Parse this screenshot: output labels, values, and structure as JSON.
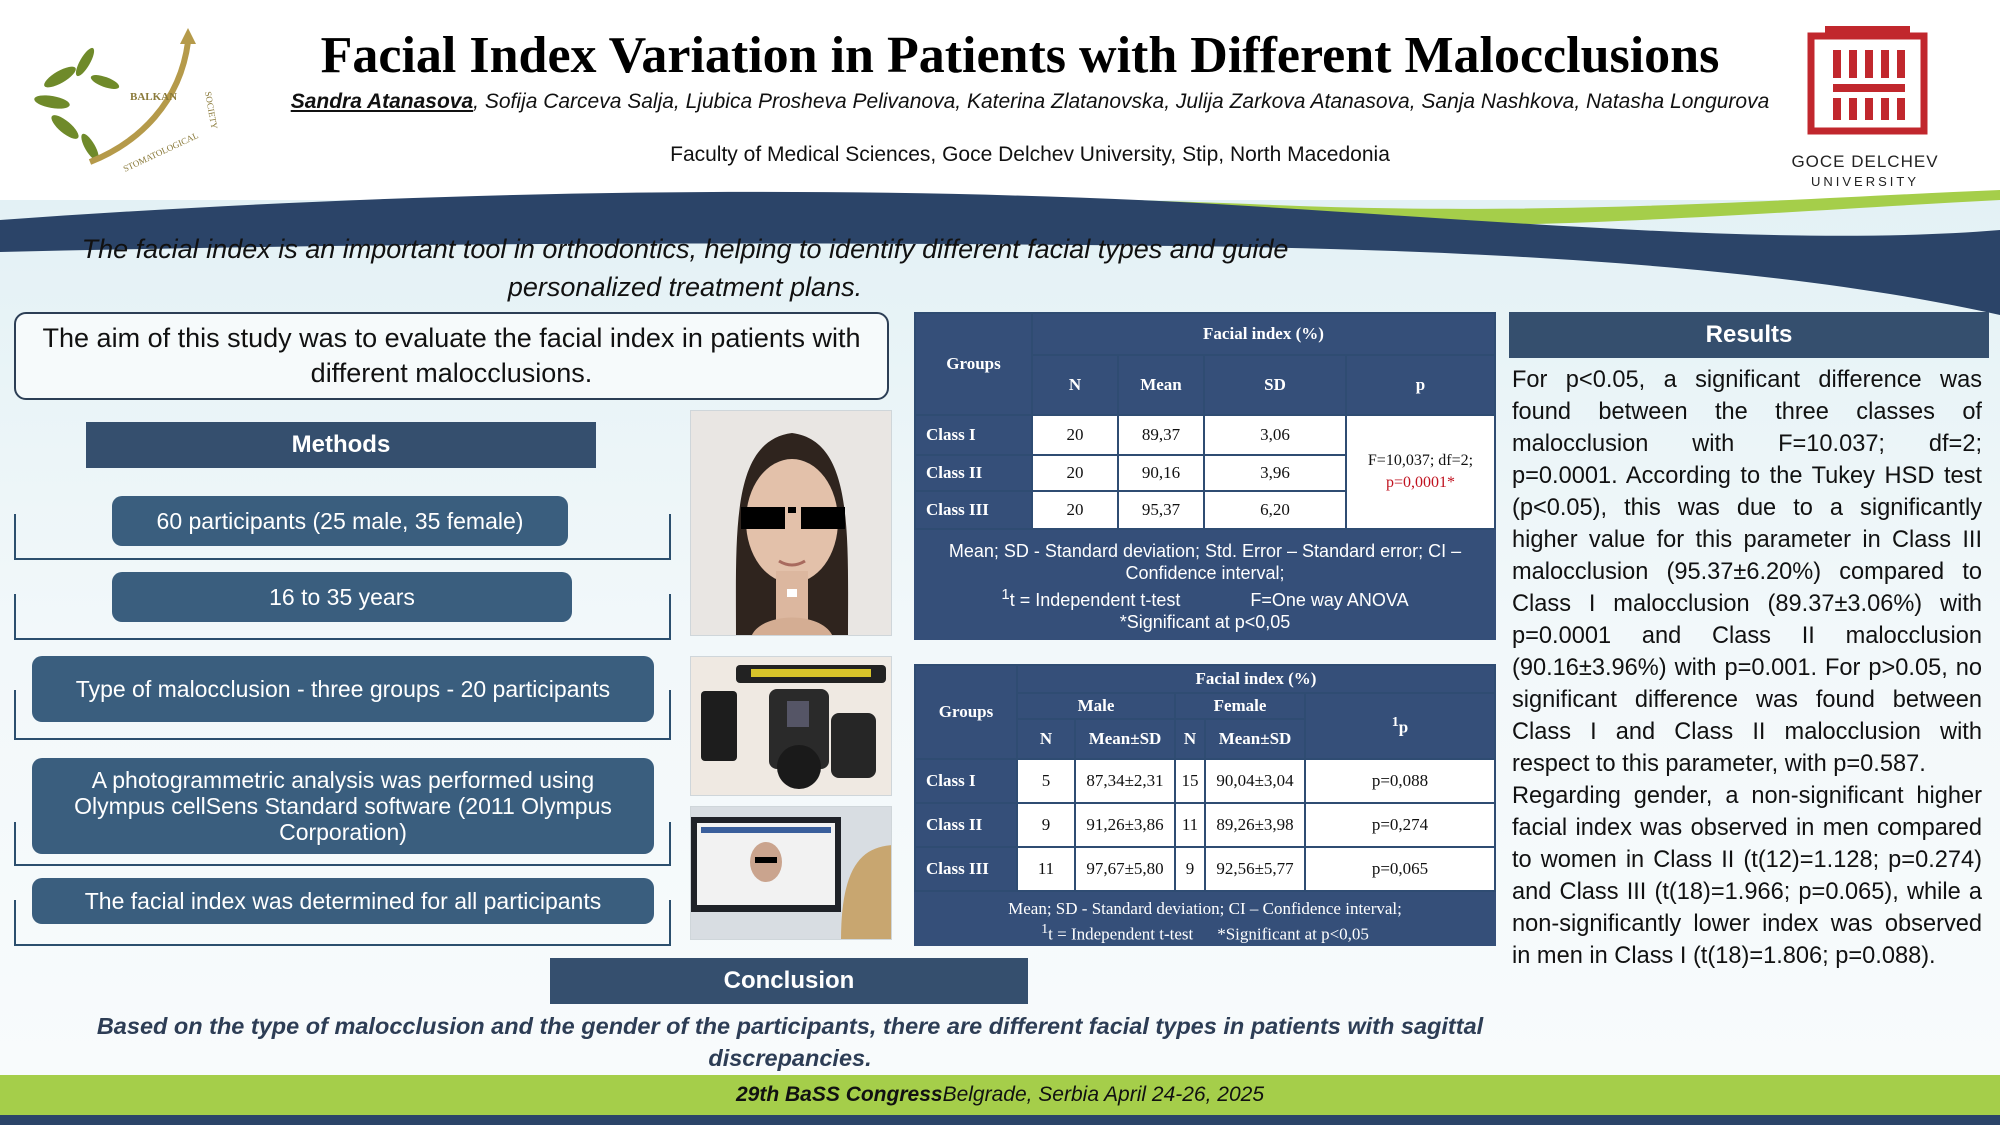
{
  "header": {
    "title": "Facial Index Variation in Patients with Different Malocclusions",
    "first_author": "Sandra Atanasova",
    "other_authors": ", Sofija Carceva Salja, Ljubica Prosheva Pelivanova, Katerina Zlatanovska, Julija Zarkova Atanasova, Sanja Nashkova, Natasha Longurova",
    "affiliation": "Faculty of Medical Sciences, Goce Delchev University, Stip, North Macedonia"
  },
  "logos": {
    "bass_text_1": "BALKAN",
    "bass_text_2": "STOMATOLOGICAL",
    "bass_text_3": "SOCIETY",
    "university_name": "GOCE DELCHEV",
    "university_sub": "UNIVERSITY"
  },
  "intro": "The facial index is an important tool in orthodontics, helping to identify different facial types and guide personalized treatment plans.",
  "aim": "The aim of this study was to evaluate the facial index in patients with different malocclusions.",
  "methods": {
    "title": "Methods",
    "items": [
      "60 participants (25 male, 35 female)",
      "16 to 35 years",
      "Type of malocclusion - three groups - 20 participants",
      "A photogrammetric analysis was performed using Olympus cellSens Standard software (2011 Olympus Corporation)",
      "The facial index was determined for all participants"
    ]
  },
  "table1": {
    "col_groups": "Groups",
    "col_span": "Facial index (%)",
    "col_n": "N",
    "col_mean": "Mean",
    "col_sd": "SD",
    "col_p": "p",
    "rows": [
      {
        "group": "Class I",
        "n": "20",
        "mean": "89,37",
        "sd": "3,06"
      },
      {
        "group": "Class II",
        "n": "20",
        "mean": "90,16",
        "sd": "3,96"
      },
      {
        "group": "Class III",
        "n": "20",
        "mean": "95,37",
        "sd": "6,20"
      }
    ],
    "p_stat": "F=10,037; df=2;",
    "p_value": "p=0,0001*",
    "note_line1": "Mean; SD - Standard deviation; Std. Error – Standard error; CI – Confidence interval;",
    "note_sup": "1",
    "note_line2a": "t = Independent t-test",
    "note_line2b": "F=One way ANOVA",
    "note_line3": "*Significant at p<0,05"
  },
  "table2": {
    "col_groups": "Groups",
    "col_span": "Facial index (%)",
    "col_male": "Male",
    "col_female": "Female",
    "col_n": "N",
    "col_meansd": "Mean±SD",
    "col_p_sup": "1",
    "col_p": "p",
    "rows": [
      {
        "group": "Class I",
        "mn": "5",
        "mmean": "87,34±2,31",
        "fn": "15",
        "fmean": "90,04±3,04",
        "p": "p=0,088"
      },
      {
        "group": "Class II",
        "mn": "9",
        "mmean": "91,26±3,86",
        "fn": "11",
        "fmean": "89,26±3,98",
        "p": "p=0,274"
      },
      {
        "group": "Class III",
        "mn": "11",
        "mmean": "97,67±5,80",
        "fn": "9",
        "fmean": "92,56±5,77",
        "p": "p=0,065"
      }
    ],
    "note_line1": "Mean; SD - Standard deviation; CI – Confidence interval;",
    "note_sup": "1",
    "note_line2a": "t = Independent t-test",
    "note_line2b": "*Significant at p<0,05"
  },
  "results": {
    "title": "Results",
    "para1": "For p<0.05, a significant difference was found between the three classes of malocclusion with F=10.037; df=2; p=0.0001. According to the Tukey HSD test (p<0.05), this was due to a significantly higher value for this parameter in Class III malocclusion (95.37±6.20%) compared to Class I malocclusion (89.37±3.06%) with p=0.0001 and Class II malocclusion (90.16±3.96%) with p=0.001. For p>0.05, no significant difference was found between Class I and Class II malocclusion with respect to this parameter, with p=0.587.",
    "para2": "Regarding gender, a non-significant higher facial index was observed in men compared to women in Class II (t(12)=1.128; p=0.274) and Class III (t(18)=1.966; p=0.065), while a non-significantly lower index was observed in men in Class I (t(18)=1.806; p=0.088)."
  },
  "conclusion": {
    "title": "Conclusion",
    "text": "Based on the type of malocclusion and the gender of the participants, there are different facial types in patients with sagittal discrepancies."
  },
  "footer": {
    "congress": "29th BaSS Congress",
    "details": " Belgrade, Serbia April 24-26, 2025"
  },
  "colors": {
    "navy": "#354f6e",
    "table_navy": "#354f79",
    "green": "#a5ce4a",
    "red_highlight": "#c0121f"
  }
}
